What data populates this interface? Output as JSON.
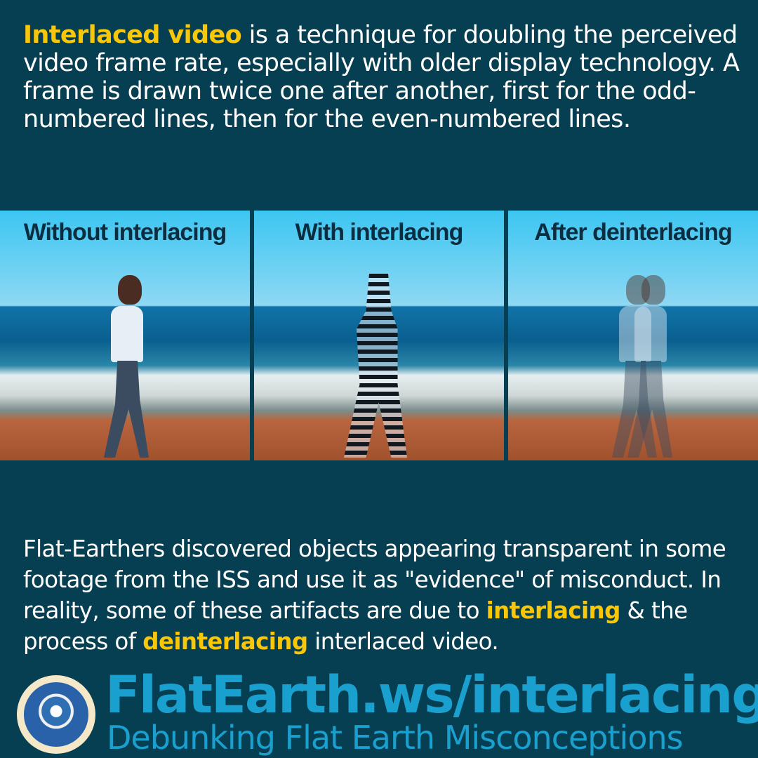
{
  "intro": {
    "highlight": "Interlaced video",
    "rest": " is a technique for doubling the perceived video frame rate, especially with older display technology. A frame is drawn twice one after another, first for the odd-numbered lines, then for the even-numbered lines."
  },
  "panels": [
    {
      "title": "Without interlacing"
    },
    {
      "title": "With interlacing"
    },
    {
      "title": "After deinterlacing"
    }
  ],
  "body": {
    "part1": "Flat-Earthers discovered objects appearing transparent in some footage from the ISS and use it as \"evidence\" of misconduct. In reality, some of these artifacts are due to ",
    "hl1": "interlacing",
    "part2": " & the process of ",
    "hl2": "deinterlacing",
    "part3": " interlaced video."
  },
  "footer": {
    "url": "FlatEarth.ws/interlacing",
    "tagline": "Debunking Flat Earth Misconceptions"
  },
  "colors": {
    "background": "#073f52",
    "highlight": "#f9c70a",
    "brand": "#1aa0cf"
  }
}
